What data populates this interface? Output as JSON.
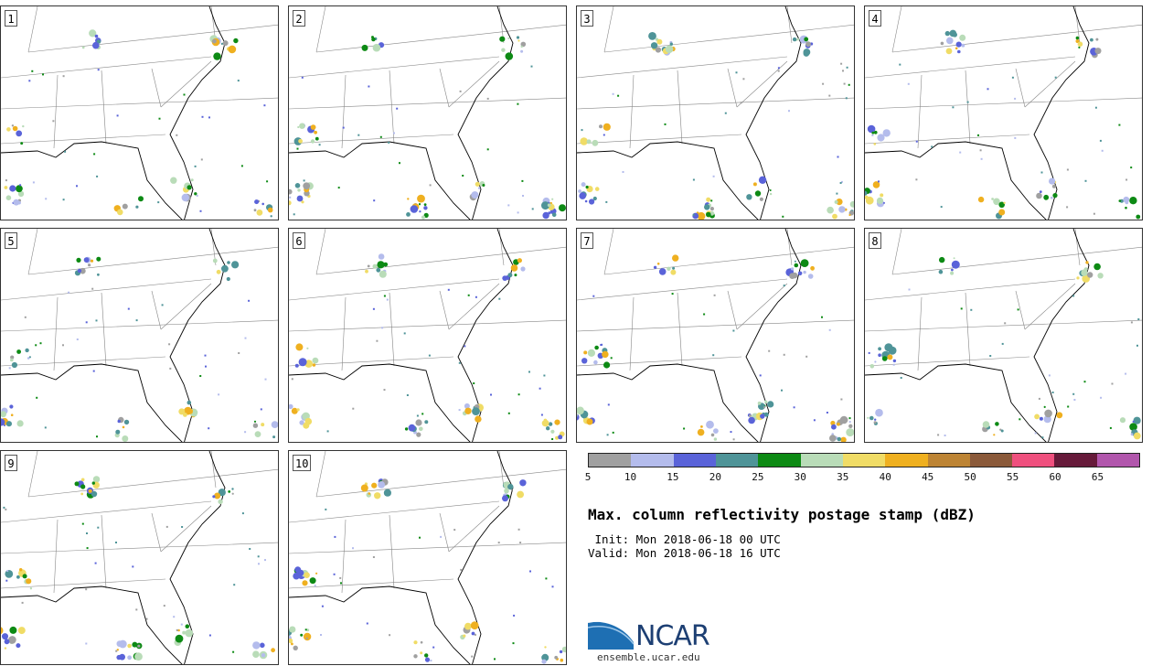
{
  "panels": [
    {
      "label": "1"
    },
    {
      "label": "2"
    },
    {
      "label": "3"
    },
    {
      "label": "4"
    },
    {
      "label": "5"
    },
    {
      "label": "6"
    },
    {
      "label": "7"
    },
    {
      "label": "8"
    },
    {
      "label": "9"
    },
    {
      "label": "10"
    }
  ],
  "legend": {
    "ticks": [
      "5",
      "10",
      "15",
      "20",
      "25",
      "30",
      "35",
      "40",
      "45",
      "50",
      "55",
      "60",
      "65"
    ],
    "colors": [
      "#a0a0a0",
      "#b4bcec",
      "#5a63d9",
      "#4f9498",
      "#0d8a14",
      "#b9dcb8",
      "#f0dc66",
      "#efb020",
      "#bd8434",
      "#8b5a3a",
      "#ef507e",
      "#661a3a",
      "#b156ac"
    ]
  },
  "title": "Max. column reflectivity postage stamp (dBZ)",
  "init_text": " Init: Mon 2018-06-18 00 UTC",
  "valid_text": "Valid: Mon 2018-06-18 16 UTC",
  "logo": {
    "word": "NCAR",
    "url": "ensemble.ucar.edu",
    "color": "#1d3f73"
  }
}
